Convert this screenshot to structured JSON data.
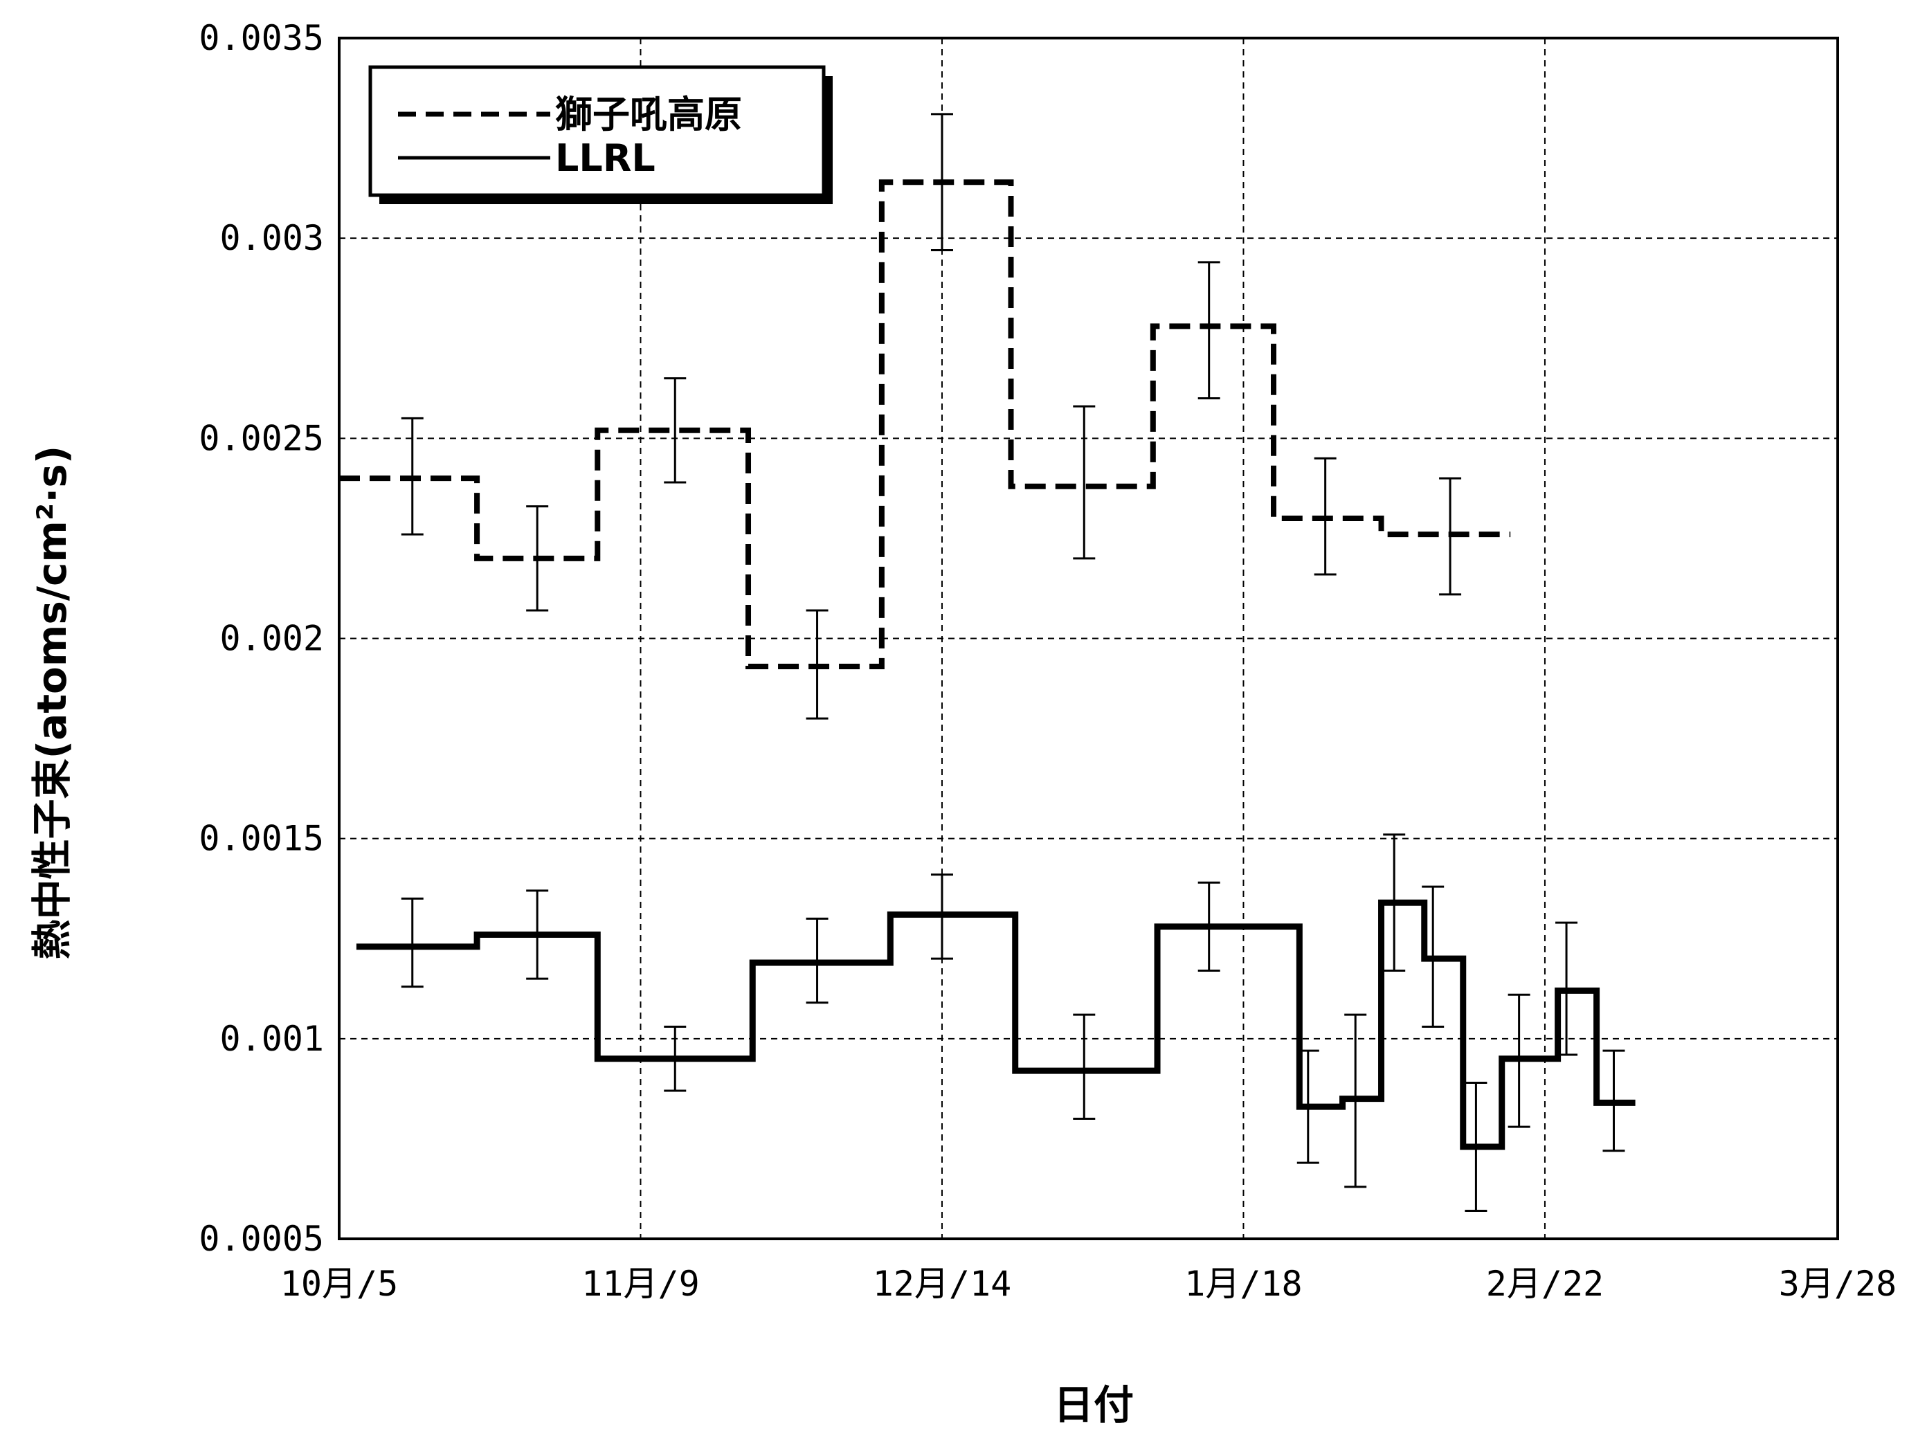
{
  "chart_data": {
    "type": "line",
    "xlabel": "日付",
    "ylabel": "熱中性子束(atoms/cm²·s)",
    "x_ticks": [
      {
        "label": "10月/5",
        "day": 0
      },
      {
        "label": "11月/9",
        "day": 35
      },
      {
        "label": "12月/14",
        "day": 70
      },
      {
        "label": "1月/18",
        "day": 105
      },
      {
        "label": "2月/22",
        "day": 140
      },
      {
        "label": "3月/28",
        "day": 174
      }
    ],
    "xlim": [
      0,
      174
    ],
    "ylim": [
      0.0005,
      0.0035
    ],
    "y_ticks": [
      {
        "label": "0.0005",
        "value": 0.0005
      },
      {
        "label": "0.001",
        "value": 0.001
      },
      {
        "label": "0.0015",
        "value": 0.0015
      },
      {
        "label": "0.002",
        "value": 0.002
      },
      {
        "label": "0.0025",
        "value": 0.0025
      },
      {
        "label": "0.003",
        "value": 0.003
      },
      {
        "label": "0.0035",
        "value": 0.0035
      }
    ],
    "grid": true,
    "legend": {
      "position": "top-left"
    },
    "series": [
      {
        "name": "獅子吼高原",
        "style": "dashed",
        "color": "#000000",
        "steps": [
          {
            "x0": 0,
            "x1": 16,
            "y": 0.0024,
            "ex": 8.5,
            "lo": 0.00226,
            "hi": 0.00255
          },
          {
            "x0": 16,
            "x1": 30,
            "y": 0.0022,
            "ex": 23,
            "lo": 0.00207,
            "hi": 0.00233
          },
          {
            "x0": 30,
            "x1": 47.5,
            "y": 0.00252,
            "ex": 39,
            "lo": 0.00239,
            "hi": 0.00265
          },
          {
            "x0": 47.5,
            "x1": 63,
            "y": 0.00193,
            "ex": 55.5,
            "lo": 0.0018,
            "hi": 0.00207
          },
          {
            "x0": 63,
            "x1": 78,
            "y": 0.00314,
            "ex": 70,
            "lo": 0.00297,
            "hi": 0.00331
          },
          {
            "x0": 78,
            "x1": 94.5,
            "y": 0.00238,
            "ex": 86.5,
            "lo": 0.0022,
            "hi": 0.00258
          },
          {
            "x0": 94.5,
            "x1": 108.5,
            "y": 0.00278,
            "ex": 101,
            "lo": 0.0026,
            "hi": 0.00294
          },
          {
            "x0": 108.5,
            "x1": 121,
            "y": 0.0023,
            "ex": 114.5,
            "lo": 0.00216,
            "hi": 0.00245
          },
          {
            "x0": 121,
            "x1": 136,
            "y": 0.00226,
            "ex": 129,
            "lo": 0.00211,
            "hi": 0.0024
          }
        ]
      },
      {
        "name": "LLRL",
        "style": "solid",
        "color": "#000000",
        "steps": [
          {
            "x0": 2,
            "x1": 16,
            "y": 0.00123,
            "ex": 8.5,
            "lo": 0.00113,
            "hi": 0.00135
          },
          {
            "x0": 16,
            "x1": 30,
            "y": 0.00126,
            "ex": 23,
            "lo": 0.00115,
            "hi": 0.00137
          },
          {
            "x0": 30,
            "x1": 48,
            "y": 0.00095,
            "ex": 39,
            "lo": 0.00087,
            "hi": 0.00103
          },
          {
            "x0": 48,
            "x1": 64,
            "y": 0.00119,
            "ex": 55.5,
            "lo": 0.00109,
            "hi": 0.0013
          },
          {
            "x0": 64,
            "x1": 78.5,
            "y": 0.00131,
            "ex": 70,
            "lo": 0.0012,
            "hi": 0.00141
          },
          {
            "x0": 78.5,
            "x1": 95,
            "y": 0.00092,
            "ex": 86.5,
            "lo": 0.0008,
            "hi": 0.00106
          },
          {
            "x0": 95,
            "x1": 111.5,
            "y": 0.00128,
            "ex": 101,
            "lo": 0.00117,
            "hi": 0.00139
          },
          {
            "x0": 111.5,
            "x1": 116.5,
            "y": 0.00083,
            "ex": 112.5,
            "lo": 0.00069,
            "hi": 0.00097
          },
          {
            "x0": 116.5,
            "x1": 121,
            "y": 0.00085,
            "ex": 118,
            "lo": 0.00063,
            "hi": 0.00106
          },
          {
            "x0": 121,
            "x1": 126,
            "y": 0.00134,
            "ex": 122.5,
            "lo": 0.00117,
            "hi": 0.00151
          },
          {
            "x0": 126,
            "x1": 130.5,
            "y": 0.0012,
            "ex": 127,
            "lo": 0.00103,
            "hi": 0.00138
          },
          {
            "x0": 130.5,
            "x1": 135,
            "y": 0.00073,
            "ex": 132,
            "lo": 0.00057,
            "hi": 0.00089
          },
          {
            "x0": 135,
            "x1": 141.5,
            "y": 0.00095,
            "ex": 137,
            "lo": 0.00078,
            "hi": 0.00111
          },
          {
            "x0": 141.5,
            "x1": 146,
            "y": 0.00112,
            "ex": 142.5,
            "lo": 0.00096,
            "hi": 0.00129
          },
          {
            "x0": 146,
            "x1": 150.5,
            "y": 0.00084,
            "ex": 148,
            "lo": 0.00072,
            "hi": 0.00097
          }
        ]
      }
    ]
  }
}
